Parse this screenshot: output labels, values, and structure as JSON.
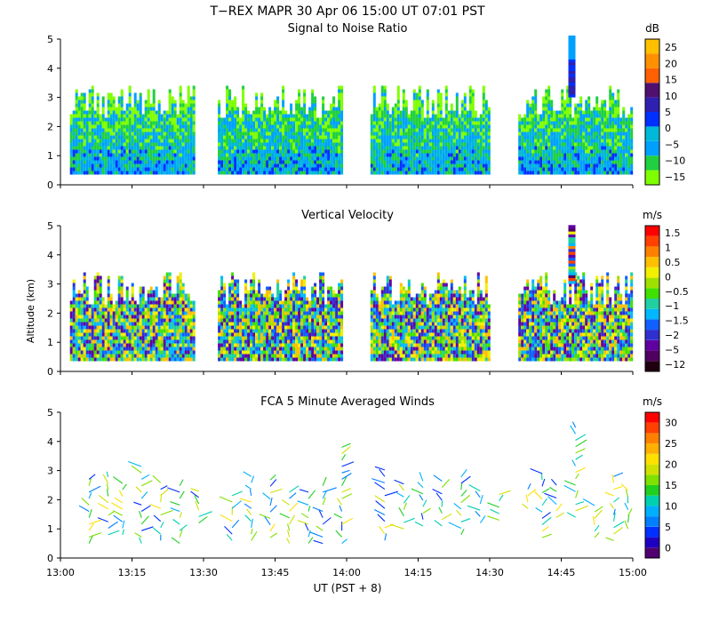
{
  "header": {
    "title": "T−REX  MAPR 30 Apr 06  15:00 UT  07:01  PST"
  },
  "x_axis": {
    "label": "UT  (PST + 8)",
    "ticks": [
      {
        "minute": 0,
        "label": "13:00"
      },
      {
        "minute": 15,
        "label": "13:15"
      },
      {
        "minute": 30,
        "label": "13:30"
      },
      {
        "minute": 45,
        "label": "13:45"
      },
      {
        "minute": 60,
        "label": "14:00"
      },
      {
        "minute": 75,
        "label": "14:15"
      },
      {
        "minute": 90,
        "label": "14:30"
      },
      {
        "minute": 105,
        "label": "14:45"
      },
      {
        "minute": 120,
        "label": "15:00"
      }
    ]
  },
  "y_axis": {
    "label": "Altitude (km)",
    "range": [
      0,
      5
    ],
    "ticks": [
      "0",
      "1",
      "2",
      "3",
      "4",
      "5"
    ]
  },
  "chart_data": [
    {
      "type": "heatmap",
      "title": "Signal to Noise Ratio",
      "unit": "dB",
      "colorbar": {
        "colors": [
          "#80ff00",
          "#20d040",
          "#00a0ff",
          "#00b8d8",
          "#0030ff",
          "#3020b0",
          "#501070",
          "#ff6000",
          "#ff9000",
          "#ffc000"
        ],
        "labels": [
          "−15",
          "−10",
          "−5",
          "0",
          "5",
          "10",
          "15",
          "20",
          "25"
        ]
      },
      "data_segments_minutes": [
        [
          2,
          28
        ],
        [
          33,
          59
        ],
        [
          65,
          90
        ],
        [
          96,
          120
        ]
      ],
      "max_altitude_km": 5
    },
    {
      "type": "heatmap",
      "title": "Vertical Velocity",
      "unit": "m/s",
      "colorbar": {
        "colors": [
          "#200010",
          "#500060",
          "#6000a0",
          "#3030d0",
          "#1060ff",
          "#00b8ff",
          "#20d0a0",
          "#40e000",
          "#a0e000",
          "#f0f000",
          "#ffc000",
          "#ff8000",
          "#ff4000",
          "#ff0000"
        ],
        "labels": [
          "−12",
          "−5",
          "−2",
          "−1.5",
          "−1",
          "−0.5",
          "0",
          "0.5",
          "1",
          "1.5"
        ]
      },
      "data_segments_minutes": [
        [
          2,
          28
        ],
        [
          33,
          59
        ],
        [
          65,
          90
        ],
        [
          96,
          120
        ]
      ],
      "max_altitude_km": 4.9
    },
    {
      "type": "scatter",
      "title": "FCA 5 Minute Averaged Winds",
      "unit": "m/s",
      "colorbar": {
        "colors": [
          "#500070",
          "#2000c0",
          "#0030ff",
          "#0080ff",
          "#00b0ff",
          "#00d0b0",
          "#20d020",
          "#80e000",
          "#d0e000",
          "#ffe000",
          "#ffb000",
          "#ff8000",
          "#ff4000",
          "#ff0000"
        ],
        "labels": [
          "0",
          "5",
          "10",
          "15",
          "20",
          "25",
          "30"
        ]
      },
      "profiles": [
        {
          "minute": 6,
          "bottom_km": 0.5,
          "top_km": 2.8
        },
        {
          "minute": 10,
          "bottom_km": 0.8,
          "top_km": 2.9
        },
        {
          "minute": 13,
          "bottom_km": 0.8,
          "top_km": 2.6
        },
        {
          "minute": 17,
          "bottom_km": 0.5,
          "top_km": 3.3
        },
        {
          "minute": 21,
          "bottom_km": 0.6,
          "top_km": 2.8
        },
        {
          "minute": 25,
          "bottom_km": 0.5,
          "top_km": 2.6
        },
        {
          "minute": 29,
          "bottom_km": 1.2,
          "top_km": 2.4
        },
        {
          "minute": 36,
          "bottom_km": 0.6,
          "top_km": 2.3
        },
        {
          "minute": 40,
          "bottom_km": 0.6,
          "top_km": 2.9
        },
        {
          "minute": 44,
          "bottom_km": 0.7,
          "top_km": 2.7
        },
        {
          "minute": 48,
          "bottom_km": 0.5,
          "top_km": 2.4
        },
        {
          "minute": 52,
          "bottom_km": 0.5,
          "top_km": 2.4
        },
        {
          "minute": 55,
          "bottom_km": 0.5,
          "top_km": 2.6
        },
        {
          "minute": 59,
          "bottom_km": 0.5,
          "top_km": 3.9
        },
        {
          "minute": 68,
          "bottom_km": 0.6,
          "top_km": 3.2
        },
        {
          "minute": 72,
          "bottom_km": 1.0,
          "top_km": 2.6
        },
        {
          "minute": 76,
          "bottom_km": 1.1,
          "top_km": 2.7
        },
        {
          "minute": 80,
          "bottom_km": 1.1,
          "top_km": 2.7
        },
        {
          "minute": 84,
          "bottom_km": 0.8,
          "top_km": 2.9
        },
        {
          "minute": 88,
          "bottom_km": 1.2,
          "top_km": 2.5
        },
        {
          "minute": 92,
          "bottom_km": 1.3,
          "top_km": 2.2
        },
        {
          "minute": 98,
          "bottom_km": 1.7,
          "top_km": 2.4
        },
        {
          "minute": 101,
          "bottom_km": 0.7,
          "top_km": 3.0
        },
        {
          "minute": 104,
          "bottom_km": 1.4,
          "top_km": 2.6
        },
        {
          "minute": 108,
          "bottom_km": 1.4,
          "top_km": 4.7
        },
        {
          "minute": 112,
          "bottom_km": 0.7,
          "top_km": 1.8
        },
        {
          "minute": 116,
          "bottom_km": 0.6,
          "top_km": 3.0
        },
        {
          "minute": 119,
          "bottom_km": 1.0,
          "top_km": 2.4
        }
      ]
    }
  ]
}
